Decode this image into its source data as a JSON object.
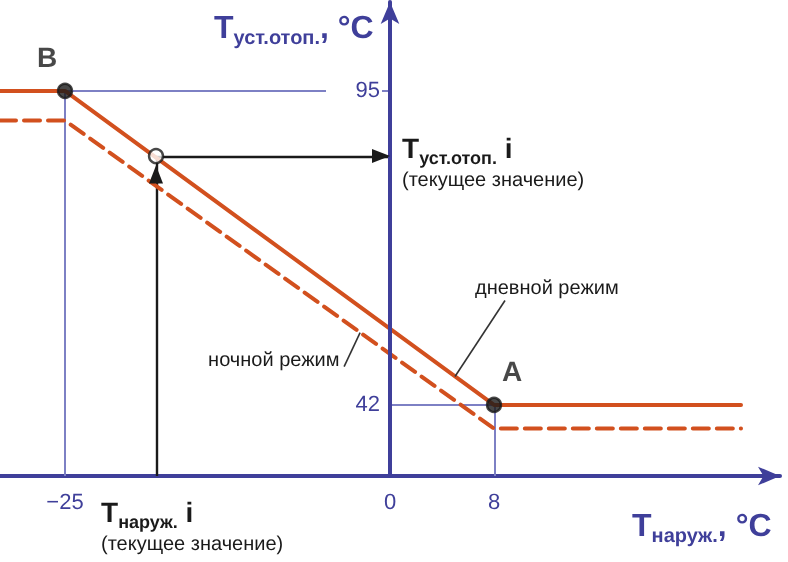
{
  "chart_data": {
    "type": "line",
    "xlabel": "T$_{наруж.}$, °C",
    "ylabel": "T$_{уст.отоп.}$, °C",
    "xlim": [
      -30,
      30
    ],
    "ylim": [
      30,
      110
    ],
    "xticks": [
      {
        "value": -25,
        "label": "−25"
      },
      0,
      8
    ],
    "yticks": [
      42,
      95
    ],
    "grid": false,
    "series": [
      {
        "color": "#d2501e",
        "line_style": "solid",
        "marker": "none",
        "x": [
          -30,
          -25,
          8,
          27
        ],
        "values": [
          95,
          95,
          42,
          42
        ]
      },
      {
        "color": "#d2501e",
        "line_style": "dashed",
        "marker": "none",
        "x": [
          -30,
          -25,
          8,
          27
        ],
        "values": [
          90,
          90,
          38,
          38
        ]
      },
      {
        "type": "scatter",
        "color": "#1a1a1a",
        "marker": "circle",
        "x": [
          -25,
          8
        ],
        "values": [
          95,
          42
        ],
        "value_labels": [
          "B",
          "A"
        ]
      },
      {
        "type": "scatter",
        "color": "#ffffff",
        "marker": "circle",
        "x": [
          -18
        ],
        "values": [
          84
        ]
      }
    ],
    "ref_lines": [
      {
        "axis": "y",
        "value": 95,
        "color": "#7d80c4"
      },
      {
        "axis": "x",
        "value": -25,
        "color": "#7d80c4"
      },
      {
        "axis": "y",
        "value": 42,
        "color": "#7d80c4"
      },
      {
        "axis": "x",
        "value": 8,
        "color": "#7d80c4"
      },
      {
        "axis": "y",
        "value": 84,
        "color": "#1a1a1a",
        "label": "T$_{уст.отоп.}$ i\n(текущее значение)"
      },
      {
        "axis": "x",
        "value": -18,
        "color": "#1a1a1a",
        "label": "T$_{наруж.}$ i\n(текущее значение)"
      }
    ],
    "annotations": [
      {
        "text": "дневной режим",
        "x": 5,
        "y": 46.8
      },
      {
        "text": "ночной режим",
        "x": -2.3,
        "y": 54.2
      }
    ]
  }
}
